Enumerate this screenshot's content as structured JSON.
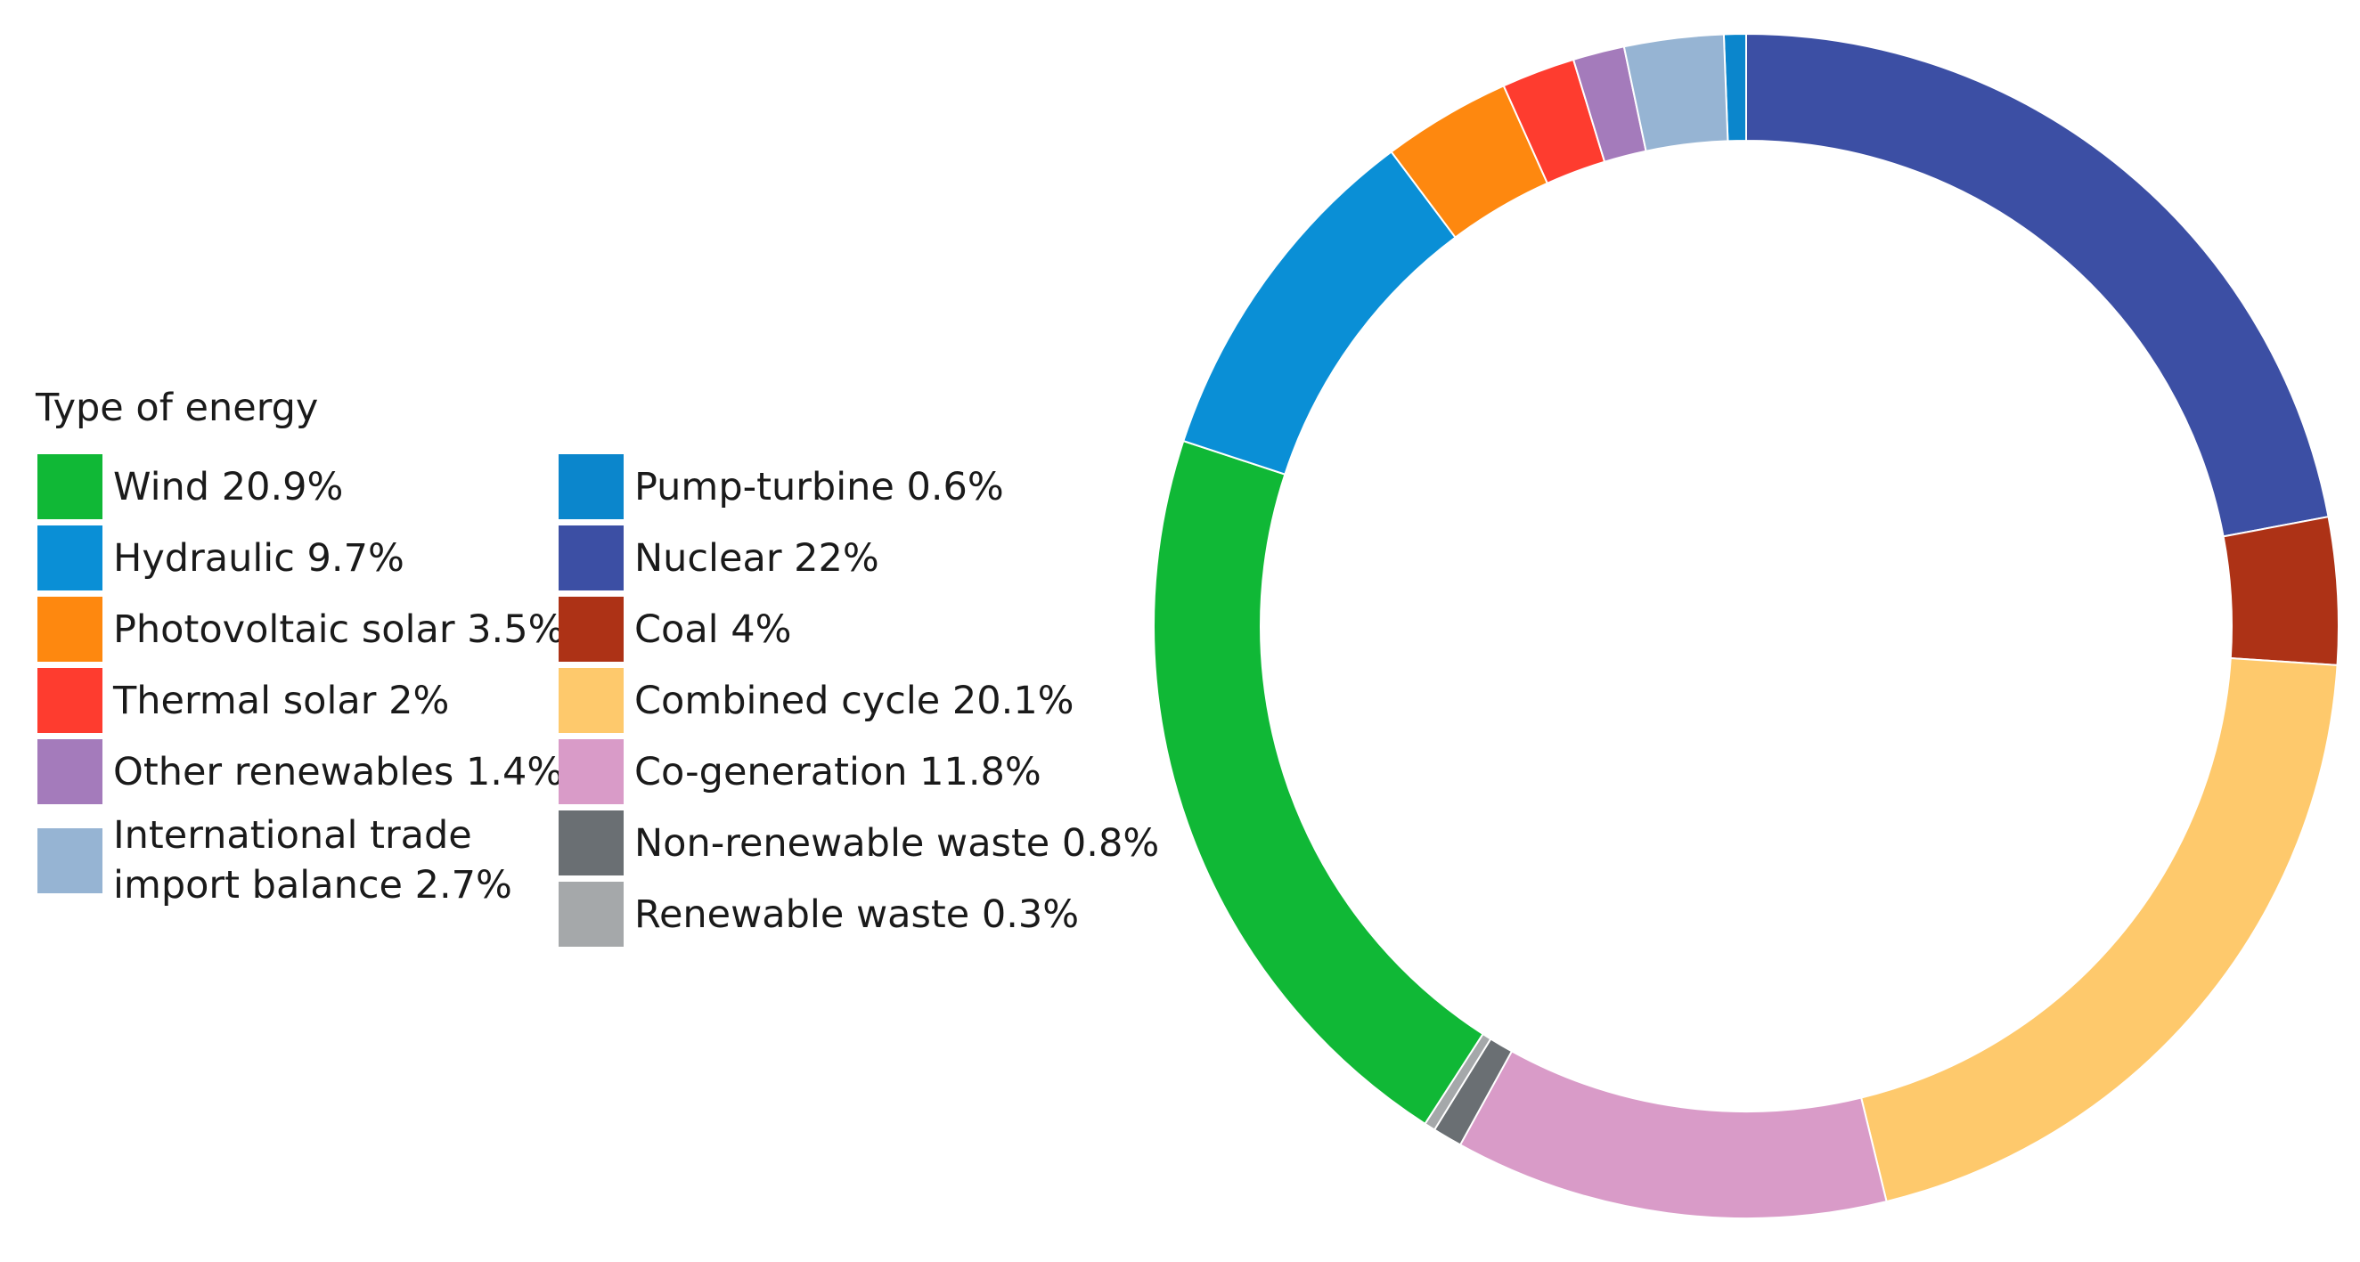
{
  "chart_data": {
    "type": "pie",
    "style": "donut",
    "legend_title": "Type of energy",
    "legend_placement": "left",
    "slices": [
      {
        "name": "Pump-turbine",
        "label": "Pump-turbine 0.6%",
        "value": 0.6,
        "color": "#0b86cc"
      },
      {
        "name": "Nuclear",
        "label": "Nuclear 22%",
        "value": 22,
        "color": "#3c4fa4"
      },
      {
        "name": "Coal",
        "label": "Coal 4%",
        "value": 4,
        "color": "#ad3216"
      },
      {
        "name": "Combined cycle",
        "label": "Combined cycle 20.1%",
        "value": 20.1,
        "color": "#fec96c"
      },
      {
        "name": "Co-generation",
        "label": "Co-generation 11.8%",
        "value": 11.8,
        "color": "#d99bc8"
      },
      {
        "name": "Non-renewable waste",
        "label": "Non-renewable waste 0.8%",
        "value": 0.8,
        "color": "#6a6f73"
      },
      {
        "name": "Renewable waste",
        "label": "Renewable waste 0.3%",
        "value": 0.3,
        "color": "#a5a8aa"
      },
      {
        "name": "Wind",
        "label": "Wind 20.9%",
        "value": 20.9,
        "color": "#10b836"
      },
      {
        "name": "Hydraulic",
        "label": "Hydraulic 9.7%",
        "value": 9.7,
        "color": "#0a8fd6"
      },
      {
        "name": "Photovoltaic solar",
        "label": "Photovoltaic solar 3.5%",
        "value": 3.5,
        "color": "#fe880f"
      },
      {
        "name": "Thermal solar",
        "label": "Thermal solar 2%",
        "value": 2,
        "color": "#fe3c2f"
      },
      {
        "name": "Other renewables",
        "label": "Other renewables 1.4%",
        "value": 1.4,
        "color": "#a47bbb"
      },
      {
        "name": "International trade import balance",
        "label": "International trade\nimport balance 2.7%",
        "value": 2.7,
        "color": "#96b4d3"
      }
    ],
    "legend_order": [
      "Wind",
      "Hydraulic",
      "Photovoltaic solar",
      "Thermal solar",
      "Other renewables",
      "International trade import balance",
      "Pump-turbine",
      "Nuclear",
      "Coal",
      "Combined cycle",
      "Co-generation",
      "Non-renewable waste",
      "Renewable waste"
    ]
  }
}
